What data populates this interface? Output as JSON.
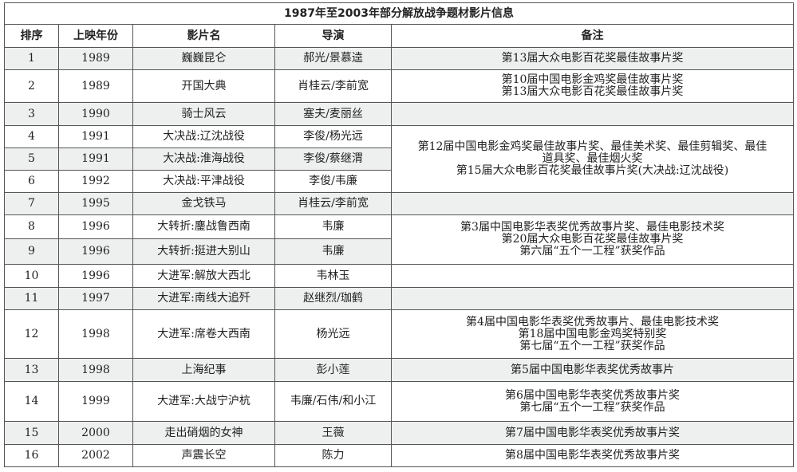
{
  "title": "1987年至2003年部分解放战争题材影片信息",
  "headers": [
    "排序",
    "上映年份",
    "影片名",
    "导演",
    "备注"
  ],
  "colors": {
    "row_shade": "#eef0f0",
    "border": "#555555"
  },
  "rows": [
    {
      "no": "1",
      "year": "1989",
      "film": "巍巍昆仑",
      "director": "郝光/景慕逵",
      "remarks": [
        "第13届大众电影百花奖最佳故事片奖"
      ],
      "remark_rowspan": 1
    },
    {
      "no": "2",
      "year": "1989",
      "film": "开国大典",
      "director": "肖桂云/李前宽",
      "remarks": [
        "第10届中国电影金鸡奖最佳故事片奖",
        "第13届大众电影百花奖最佳故事片奖"
      ],
      "remark_rowspan": 1
    },
    {
      "no": "3",
      "year": "1990",
      "film": "骑士风云",
      "director": "塞夫/麦丽丝",
      "remarks": [],
      "remark_rowspan": 1
    },
    {
      "no": "4",
      "year": "1991",
      "film": "大决战:辽沈战役",
      "director": "李俊/杨光远",
      "remarks": [
        "第12届中国电影金鸡奖最佳故事片奖、最佳美术奖、最佳剪辑奖、最佳",
        "道具奖、最佳烟火奖",
        "第15届大众电影百花奖最佳故事片奖(大决战:辽沈战役)"
      ],
      "remark_rowspan": 3
    },
    {
      "no": "5",
      "year": "1991",
      "film": "大决战:淮海战役",
      "director": "李俊/蔡继渭",
      "remarks": null
    },
    {
      "no": "6",
      "year": "1992",
      "film": "大决战:平津战役",
      "director": "李俊/韦廉",
      "remarks": null
    },
    {
      "no": "7",
      "year": "1995",
      "film": "金戈铁马",
      "director": "肖桂云/李前宽",
      "remarks": [],
      "remark_rowspan": 1
    },
    {
      "no": "8",
      "year": "1996",
      "film": "大转折:鏖战鲁西南",
      "director": "韦廉",
      "remarks": [
        "第3届中国电影华表奖优秀故事片奖、最佳电影技术奖",
        "第20届大众电影百花奖最佳故事片奖",
        "第六届“五个一工程”获奖作品"
      ],
      "remark_rowspan": 2
    },
    {
      "no": "9",
      "year": "1996",
      "film": "大转折:挺进大别山",
      "director": "韦廉",
      "remarks": null
    },
    {
      "no": "10",
      "year": "1996",
      "film": "大进军:解放大西北",
      "director": "韦林玉",
      "remarks": [],
      "remark_rowspan": 1
    },
    {
      "no": "11",
      "year": "1997",
      "film": "大进军:南线大追歼",
      "director": "赵继烈/珈鹤",
      "remarks": [],
      "remark_rowspan": 1
    },
    {
      "no": "12",
      "year": "1998",
      "film": "大进军:席卷大西南",
      "director": "杨光远",
      "remarks": [
        "第4届中国电影华表奖优秀故事片、最佳电影技术奖",
        "第18届中国电影金鸡奖特别奖",
        "第七届“五个一工程”获奖作品"
      ],
      "remark_rowspan": 1
    },
    {
      "no": "13",
      "year": "1998",
      "film": "上海纪事",
      "director": "彭小莲",
      "remarks": [
        "第5届中国电影华表奖优秀故事片"
      ],
      "remark_rowspan": 1
    },
    {
      "no": "14",
      "year": "1999",
      "film": "大进军:大战宁沪杭",
      "director": "韦廉/石伟/和小江",
      "remarks": [
        "第6届中国电影华表奖优秀故事片奖",
        "第七届“五个一工程”获奖作品"
      ],
      "remark_rowspan": 1
    },
    {
      "no": "15",
      "year": "2000",
      "film": "走出硝烟的女神",
      "director": "王薇",
      "remarks": [
        "第7届中国电影华表奖优秀故事片奖"
      ],
      "remark_rowspan": 1
    },
    {
      "no": "16",
      "year": "2002",
      "film": "声震长空",
      "director": "陈力",
      "remarks": [
        "第8届中国电影华表奖优秀故事片奖"
      ],
      "remark_rowspan": 1
    }
  ]
}
